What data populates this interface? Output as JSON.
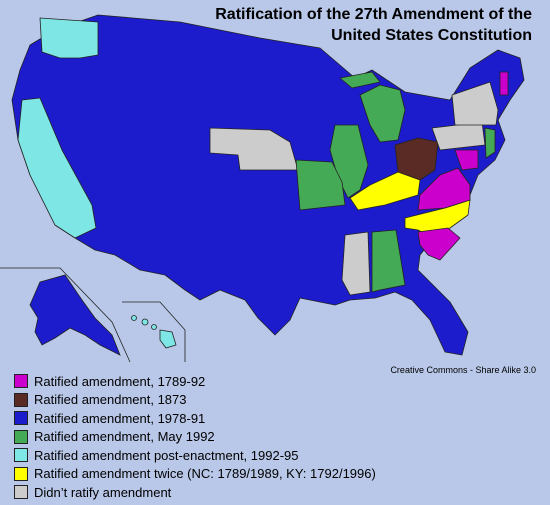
{
  "title_line1": "Ratification of the 27th Amendment of the",
  "title_line2": "United States Constitution",
  "credit": "Creative Commons - Share Alike 3.0",
  "colors": {
    "magenta": "#cc00cc",
    "brown": "#5a2a24",
    "blue": "#1c1ccc",
    "green": "#44aa55",
    "cyan": "#7fe6e6",
    "yellow": "#ffff00",
    "gray": "#cccccc",
    "background": "#b9c8e8",
    "border": "#222222"
  },
  "legend": [
    {
      "label": "Ratified amendment, 1789-92",
      "color": "#cc00cc"
    },
    {
      "label": "Ratified amendment, 1873",
      "color": "#5a2a24"
    },
    {
      "label": "Ratified amendment, 1978-91",
      "color": "#1c1ccc"
    },
    {
      "label": "Ratified amendment, May 1992",
      "color": "#44aa55"
    },
    {
      "label": "Ratified amendment post-enactment, 1992-95",
      "color": "#7fe6e6"
    },
    {
      "label": "Ratified amendment twice (NC: 1789/1989, KY: 1792/1996)",
      "color": "#ffff00"
    },
    {
      "label": "Didn’t ratify amendment",
      "color": "#cccccc"
    }
  ]
}
